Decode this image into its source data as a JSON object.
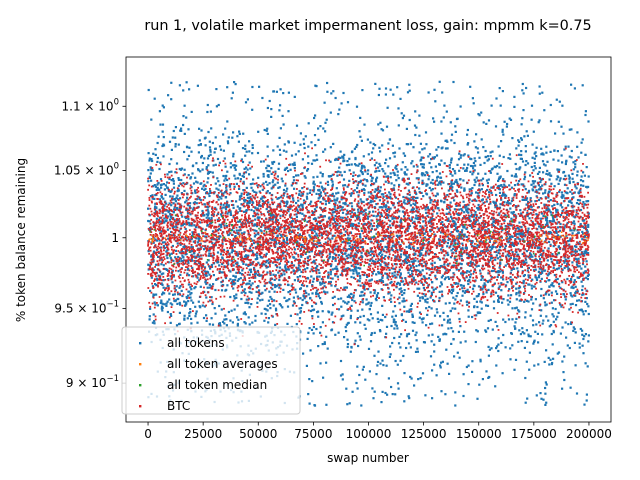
{
  "chart_data": {
    "type": "scatter",
    "title": "run 1, volatile market impermanent loss, gain: mpmm k=0.75",
    "xlabel": "swap number",
    "ylabel": "% token balance remaining",
    "x_scale": "linear",
    "y_scale": "log",
    "xlim": [
      -10000,
      210000
    ],
    "ylim": [
      0.875,
      1.14
    ],
    "x_ticks": [
      0,
      25000,
      50000,
      75000,
      100000,
      125000,
      150000,
      175000,
      200000
    ],
    "x_tick_labels": [
      "0",
      "25000",
      "50000",
      "75000",
      "100000",
      "125000",
      "150000",
      "175000",
      "200000"
    ],
    "y_ticks": [
      {
        "value": 0.9,
        "mantissa": "9",
        "sign": "×",
        "base": "10",
        "exp": "−1"
      },
      {
        "value": 0.95,
        "mantissa": "9.5",
        "sign": "×",
        "base": "10",
        "exp": "−1"
      },
      {
        "value": 1.0,
        "mantissa": "",
        "sign": "",
        "base": "10",
        "exp": "0"
      },
      {
        "value": 1.05,
        "mantissa": "1.05",
        "sign": "×",
        "base": "10",
        "exp": "0"
      },
      {
        "value": 1.1,
        "mantissa": "1.1",
        "sign": "×",
        "base": "10",
        "exp": "0"
      }
    ],
    "legend_position": "lower-left",
    "series": [
      {
        "name": "all tokens",
        "color": "#1f77b4",
        "x_range": [
          0,
          200000
        ],
        "y_range": [
          0.885,
          1.12
        ],
        "typical_band": [
          0.93,
          1.075
        ]
      },
      {
        "name": "all token averages",
        "color": "#ff7f0e",
        "x_range": [
          0,
          200000
        ],
        "y_range": [
          0.995,
          1.005
        ]
      },
      {
        "name": "all token median",
        "color": "#2ca02c",
        "x_range": [
          0,
          200000
        ],
        "y_range": [
          0.98,
          1.02
        ]
      },
      {
        "name": "BTC",
        "color": "#d62728",
        "x_range": [
          0,
          200000
        ],
        "y_range": [
          0.92,
          1.07
        ],
        "typical_band": [
          0.955,
          1.04
        ]
      }
    ]
  }
}
